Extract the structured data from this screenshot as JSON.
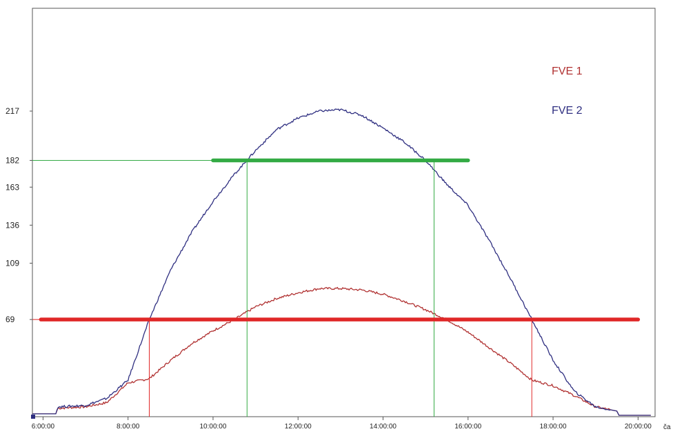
{
  "chart_data": {
    "type": "line",
    "x_unit_label": "ča",
    "x_ticks": [
      "6:00:00",
      "8:00:00",
      "10:00:00",
      "12:00:00",
      "14:00:00",
      "16:00:00",
      "18:00:00",
      "20:00:00"
    ],
    "y_ticks": [
      69,
      109,
      136,
      163,
      182,
      217
    ],
    "xlim": [
      5.75,
      20.4
    ],
    "ylim": [
      0,
      290
    ],
    "grid": true,
    "legend_position": "top-right",
    "series": [
      {
        "name": "FVE 1",
        "color": "#b03030",
        "x": [
          5.75,
          6.3,
          6.35,
          7.0,
          7.5,
          8.0,
          8.5,
          9.0,
          9.5,
          10.0,
          10.5,
          11.0,
          11.5,
          12.0,
          12.5,
          13.0,
          13.5,
          14.0,
          14.5,
          15.0,
          15.5,
          16.0,
          16.5,
          17.0,
          17.5,
          18.0,
          18.5,
          19.0,
          19.5,
          19.55,
          20.3
        ],
        "y": [
          2,
          2,
          6,
          7,
          10,
          24,
          27,
          40,
          52,
          61,
          69,
          78,
          84,
          88,
          91,
          91,
          90,
          87,
          82,
          76,
          69,
          60,
          49,
          38,
          26,
          22,
          15,
          7,
          4,
          1,
          1
        ]
      },
      {
        "name": "FVE 2",
        "color": "#2e2e80",
        "x": [
          5.75,
          6.3,
          6.35,
          7.0,
          7.5,
          8.0,
          8.5,
          9.0,
          9.5,
          10.0,
          10.5,
          11.0,
          11.5,
          12.0,
          12.5,
          13.0,
          13.5,
          14.0,
          14.5,
          15.0,
          15.5,
          16.0,
          16.5,
          17.0,
          17.5,
          18.0,
          18.5,
          19.0,
          19.5,
          19.55,
          20.3
        ],
        "y": [
          2,
          2,
          7,
          8,
          13,
          26,
          69,
          104,
          131,
          153,
          172,
          189,
          204,
          212,
          217,
          218,
          214,
          205,
          195,
          182,
          165,
          150,
          125,
          98,
          69,
          40,
          18,
          7,
          4,
          1,
          1
        ]
      }
    ],
    "reference_lines": [
      {
        "color": "#33aa44",
        "y": 182,
        "x_start": 10.0,
        "x_end": 16.0,
        "drop_lines_x": [
          10.8,
          15.2
        ]
      },
      {
        "color": "#e02828",
        "y": 69,
        "x_start": 5.95,
        "x_end": 20.0,
        "drop_lines_x": [
          8.5,
          17.5
        ]
      }
    ]
  }
}
